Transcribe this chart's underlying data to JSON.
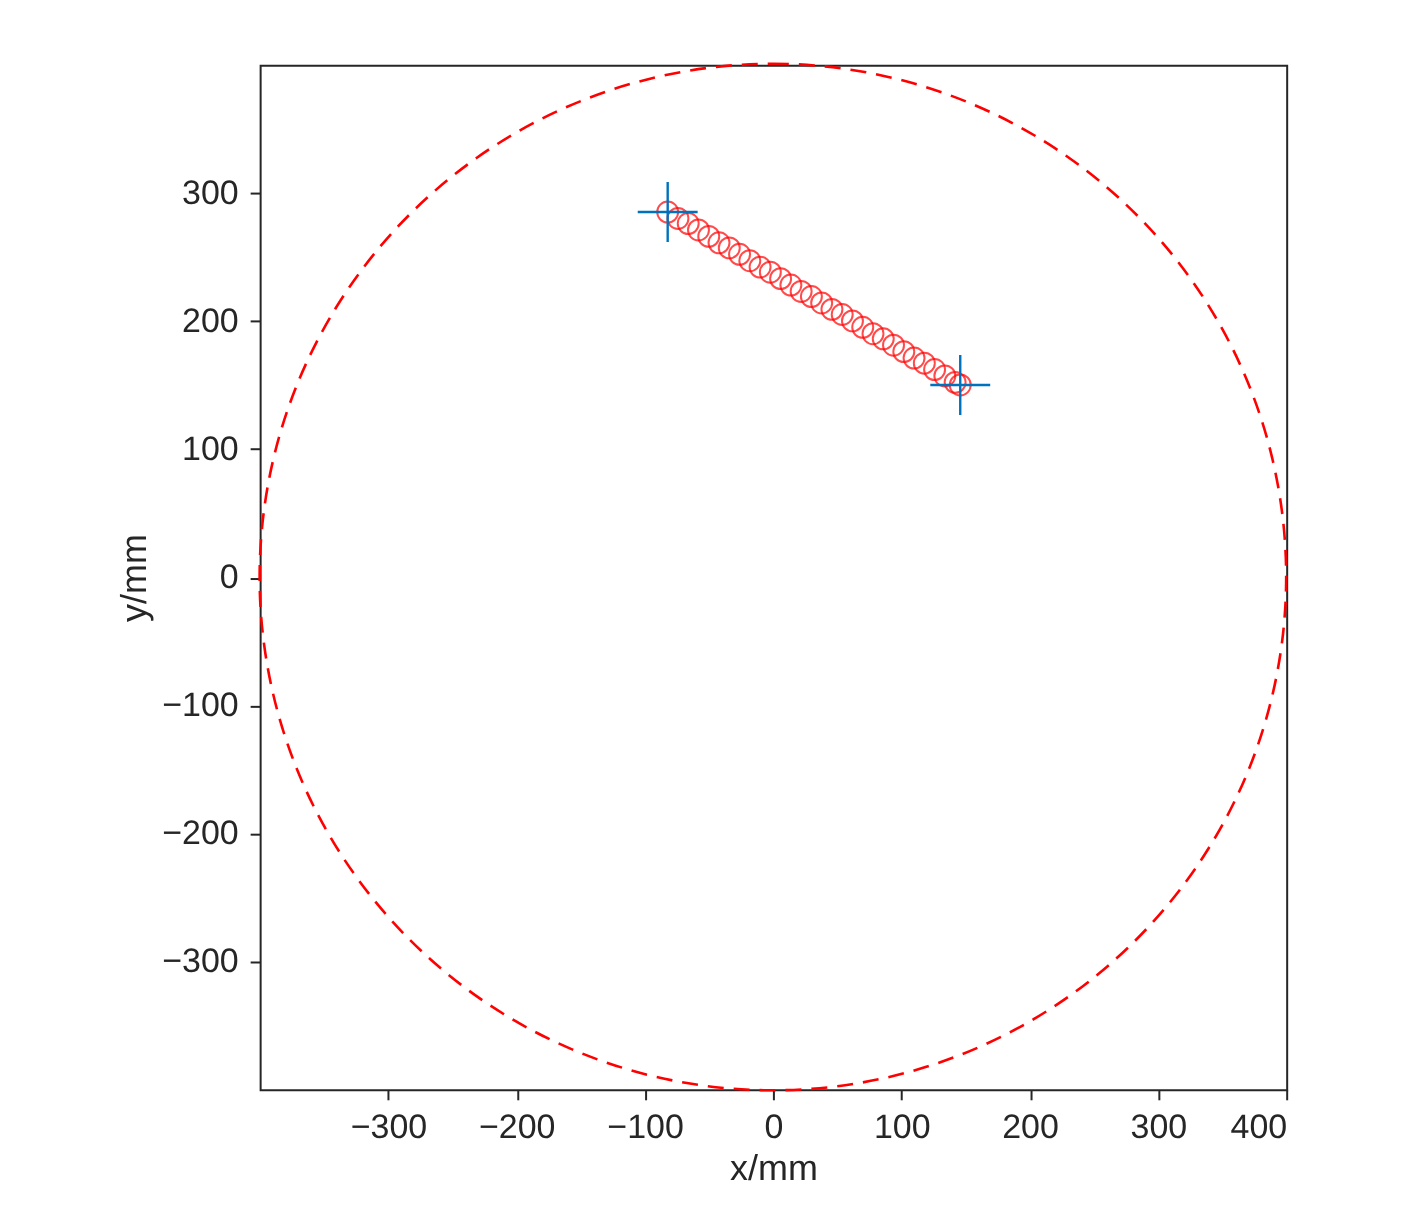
{
  "chart_data": {
    "type": "scatter",
    "xlabel": "x/mm",
    "ylabel": "y/mm",
    "xlim": [
      -400,
      400
    ],
    "ylim": [
      -400,
      400
    ],
    "xticks": [
      -300,
      -200,
      -100,
      0,
      100,
      200,
      300,
      400
    ],
    "yticks": [
      -300,
      -200,
      -100,
      0,
      100,
      200,
      300
    ],
    "grid": false,
    "series": [
      {
        "color": "#ff0000",
        "marker": "circle",
        "x": [
          -82,
          -74,
          -66,
          -58,
          -50,
          -42,
          -34,
          -26,
          -18,
          -10,
          -2,
          6,
          14,
          22,
          30,
          38,
          46,
          54,
          62,
          70,
          78,
          86,
          94,
          102,
          110,
          118,
          126,
          134,
          142,
          146
        ],
        "values": [
          285,
          280,
          276,
          271,
          266,
          261,
          257,
          252,
          247,
          242,
          238,
          233,
          228,
          223,
          219,
          214,
          209,
          205,
          200,
          195,
          190,
          186,
          181,
          176,
          171,
          167,
          162,
          157,
          152,
          150
        ]
      },
      {
        "color": "#0072bd",
        "marker": "cross",
        "x": [
          -82,
          146
        ],
        "values": [
          285,
          150
        ]
      }
    ]
  }
}
